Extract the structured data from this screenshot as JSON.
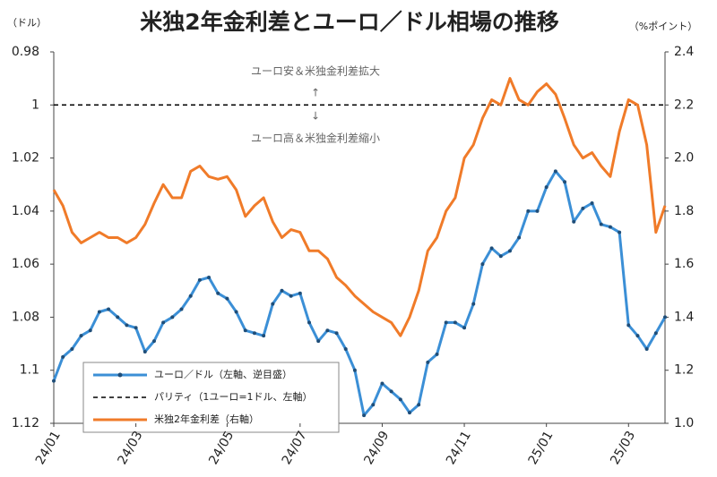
{
  "chart_data": {
    "type": "line",
    "title": "米独2年金利差とユーロ／ドル相場の推移",
    "y_label": "（ドル）",
    "y2_label": "（%ポイント）",
    "annotations": [
      "ユーロ安＆米独金利差拡大",
      "ユーロ高＆米独金利差縮小"
    ],
    "categories": [
      "24/01",
      null,
      null,
      null,
      null,
      null,
      null,
      null,
      null,
      "24/03",
      null,
      null,
      null,
      null,
      null,
      null,
      null,
      null,
      null,
      "24/05",
      null,
      null,
      null,
      null,
      null,
      null,
      null,
      "24/07",
      null,
      null,
      null,
      null,
      null,
      null,
      null,
      null,
      "24/09",
      null,
      null,
      null,
      null,
      null,
      null,
      null,
      null,
      "24/11",
      null,
      null,
      null,
      null,
      null,
      null,
      null,
      null,
      "25/01",
      null,
      null,
      null,
      null,
      null,
      null,
      null,
      null,
      "25/03",
      null,
      null,
      null,
      null
    ],
    "ylim": [
      0.98,
      1.12
    ],
    "y_inverted": true,
    "yticks": [
      0.98,
      1,
      1.02,
      1.04,
      1.06,
      1.08,
      1.1,
      1.12
    ],
    "y2lim": [
      1.0,
      2.4
    ],
    "y2ticks": [
      2.4,
      2.2,
      {
        "value": 2.0,
        "label": "2.0"
      },
      1.8,
      1.6,
      1.4,
      1.2,
      {
        "value": 1.0,
        "label": "1.0"
      }
    ],
    "reference_lines": [
      {
        "name": "パリティ（1ユーロ=1ドル、左軸）",
        "value": 1,
        "color": "#000000",
        "dashed": true
      }
    ],
    "series": [
      {
        "name": "ユーロ／ドル（左軸、逆目盛）",
        "color": "#3b8fd6",
        "markers": true,
        "values": [
          1.104,
          1.095,
          1.092,
          1.087,
          1.085,
          1.078,
          1.077,
          1.08,
          1.083,
          1.084,
          1.093,
          1.089,
          1.082,
          1.08,
          1.077,
          1.072,
          1.066,
          1.065,
          1.071,
          1.073,
          1.078,
          1.085,
          1.086,
          1.087,
          1.075,
          1.07,
          1.072,
          1.071,
          1.082,
          1.089,
          1.085,
          1.086,
          1.092,
          1.1,
          1.117,
          1.113,
          1.105,
          1.108,
          1.111,
          1.116,
          1.113,
          1.097,
          1.094,
          1.082,
          1.082,
          1.084,
          1.075,
          1.06,
          1.054,
          1.057,
          1.055,
          1.05,
          1.04,
          1.04,
          1.031,
          1.025,
          1.029,
          1.044,
          1.039,
          1.037,
          1.045,
          1.046,
          1.048,
          1.083,
          1.087,
          1.092,
          1.086,
          1.08
        ]
      },
      {
        "name": "米独2年金利差（右軸）",
        "color": "#f07b29",
        "axis": "y2",
        "values": [
          1.88,
          1.82,
          1.72,
          1.68,
          1.7,
          1.72,
          1.7,
          1.7,
          1.68,
          1.7,
          1.75,
          1.83,
          1.9,
          1.85,
          1.85,
          1.95,
          1.97,
          1.93,
          1.92,
          1.93,
          1.88,
          1.78,
          1.82,
          1.85,
          1.76,
          1.7,
          1.73,
          1.72,
          1.65,
          1.65,
          1.62,
          1.55,
          1.52,
          1.48,
          1.45,
          1.42,
          1.4,
          1.38,
          1.33,
          1.4,
          1.5,
          1.65,
          1.7,
          1.8,
          1.85,
          2.0,
          2.05,
          2.15,
          2.22,
          2.2,
          2.3,
          2.22,
          2.2,
          2.25,
          2.28,
          2.24,
          2.15,
          2.05,
          2.0,
          2.02,
          1.97,
          1.93,
          2.1,
          2.22,
          2.2,
          2.05,
          1.72,
          1.82
        ]
      }
    ]
  }
}
